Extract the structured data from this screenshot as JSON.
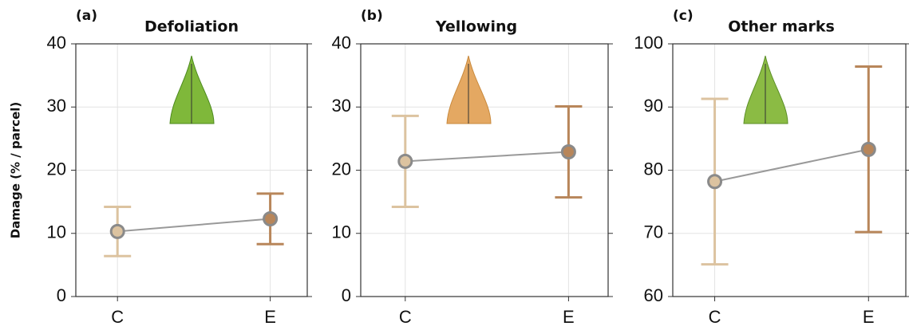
{
  "chart_data": [
    {
      "type": "errorbar",
      "panel_label": "(a)",
      "title": "Defoliation",
      "y_label": "Damage (% / parcel)",
      "categories": [
        "C",
        "E"
      ],
      "values": [
        10.3,
        12.3
      ],
      "errors": [
        3.9,
        4.0
      ],
      "colors": [
        "#dcc3a0",
        "#b8865a"
      ],
      "line_color": "#999999",
      "ylim": [
        0,
        40
      ],
      "yticks": [
        0,
        10,
        20,
        30,
        40
      ],
      "grid": true
    },
    {
      "type": "errorbar",
      "panel_label": "(b)",
      "title": "Yellowing",
      "categories": [
        "C",
        "E"
      ],
      "values": [
        21.4,
        22.9
      ],
      "errors": [
        7.2,
        7.2
      ],
      "colors": [
        "#dcc3a0",
        "#b8865a"
      ],
      "line_color": "#999999",
      "ylim": [
        0,
        40
      ],
      "yticks": [
        0,
        10,
        20,
        30,
        40
      ],
      "grid": true
    },
    {
      "type": "errorbar",
      "panel_label": "(c)",
      "title": "Other marks",
      "categories": [
        "C",
        "E"
      ],
      "values": [
        78.2,
        83.3
      ],
      "errors": [
        13.1,
        13.1
      ],
      "colors": [
        "#dcc3a0",
        "#b8865a"
      ],
      "line_color": "#999999",
      "ylim": [
        60,
        100
      ],
      "yticks": [
        60,
        70,
        80,
        90,
        100
      ],
      "grid": true
    }
  ]
}
